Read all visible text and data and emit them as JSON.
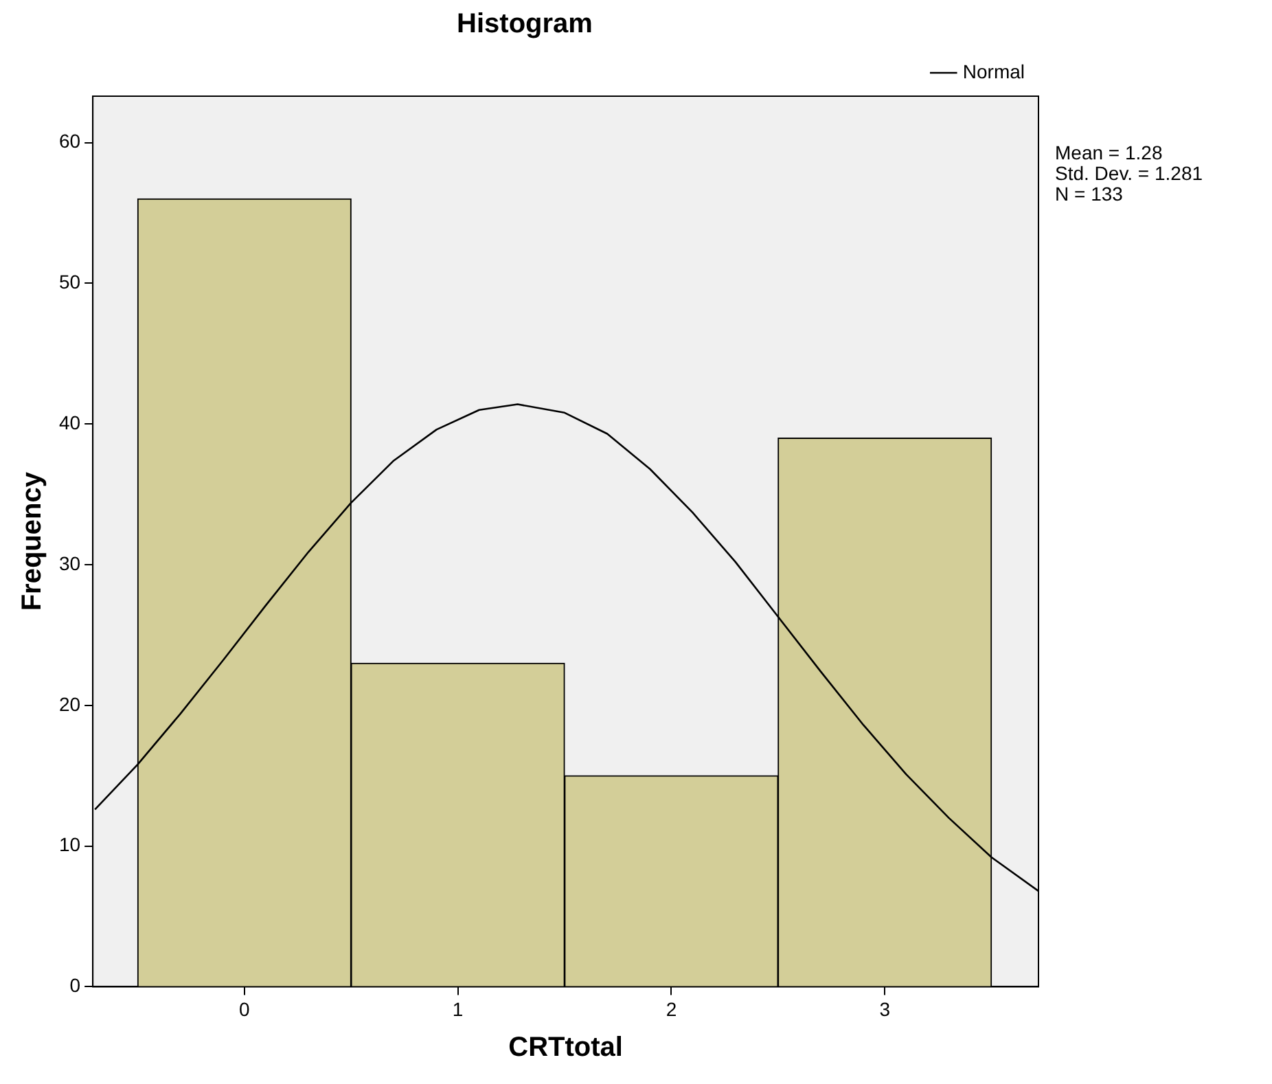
{
  "chart_data": {
    "type": "histogram",
    "title": "Histogram",
    "xlabel": "CRTtotal",
    "ylabel": "Frequency",
    "bins": [
      -0.5,
      0.5,
      1.5,
      2.5,
      3.5
    ],
    "values": [
      56,
      23,
      15,
      39
    ],
    "color": "#d3ce98",
    "series": [
      {
        "type": "line",
        "name": "Normal",
        "color": "#000000",
        "x": [
          -0.7,
          -0.5,
          -0.3,
          -0.1,
          0.1,
          0.3,
          0.5,
          0.7,
          0.9,
          1.1,
          1.28,
          1.5,
          1.7,
          1.9,
          2.1,
          2.3,
          2.5,
          2.7,
          2.9,
          3.1,
          3.3,
          3.5,
          3.72
        ],
        "values": [
          12.6,
          15.8,
          19.4,
          23.2,
          27.1,
          30.9,
          34.4,
          37.4,
          39.6,
          41.0,
          41.4,
          40.8,
          39.3,
          36.8,
          33.7,
          30.2,
          26.3,
          22.4,
          18.6,
          15.1,
          12.0,
          9.2,
          6.8
        ]
      }
    ],
    "xlim": [
      -0.71,
      3.72
    ],
    "xticks": [
      0,
      1,
      2,
      3
    ],
    "ylim": [
      0,
      63.3
    ],
    "yticks": [
      0,
      10,
      20,
      30,
      40,
      50,
      60
    ],
    "grid": false,
    "legend": "top right",
    "marker": "none",
    "line_style": "solid",
    "annotations": [
      "Mean = 1.28",
      "Std. Dev. = 1.281",
      "N = 133"
    ]
  }
}
